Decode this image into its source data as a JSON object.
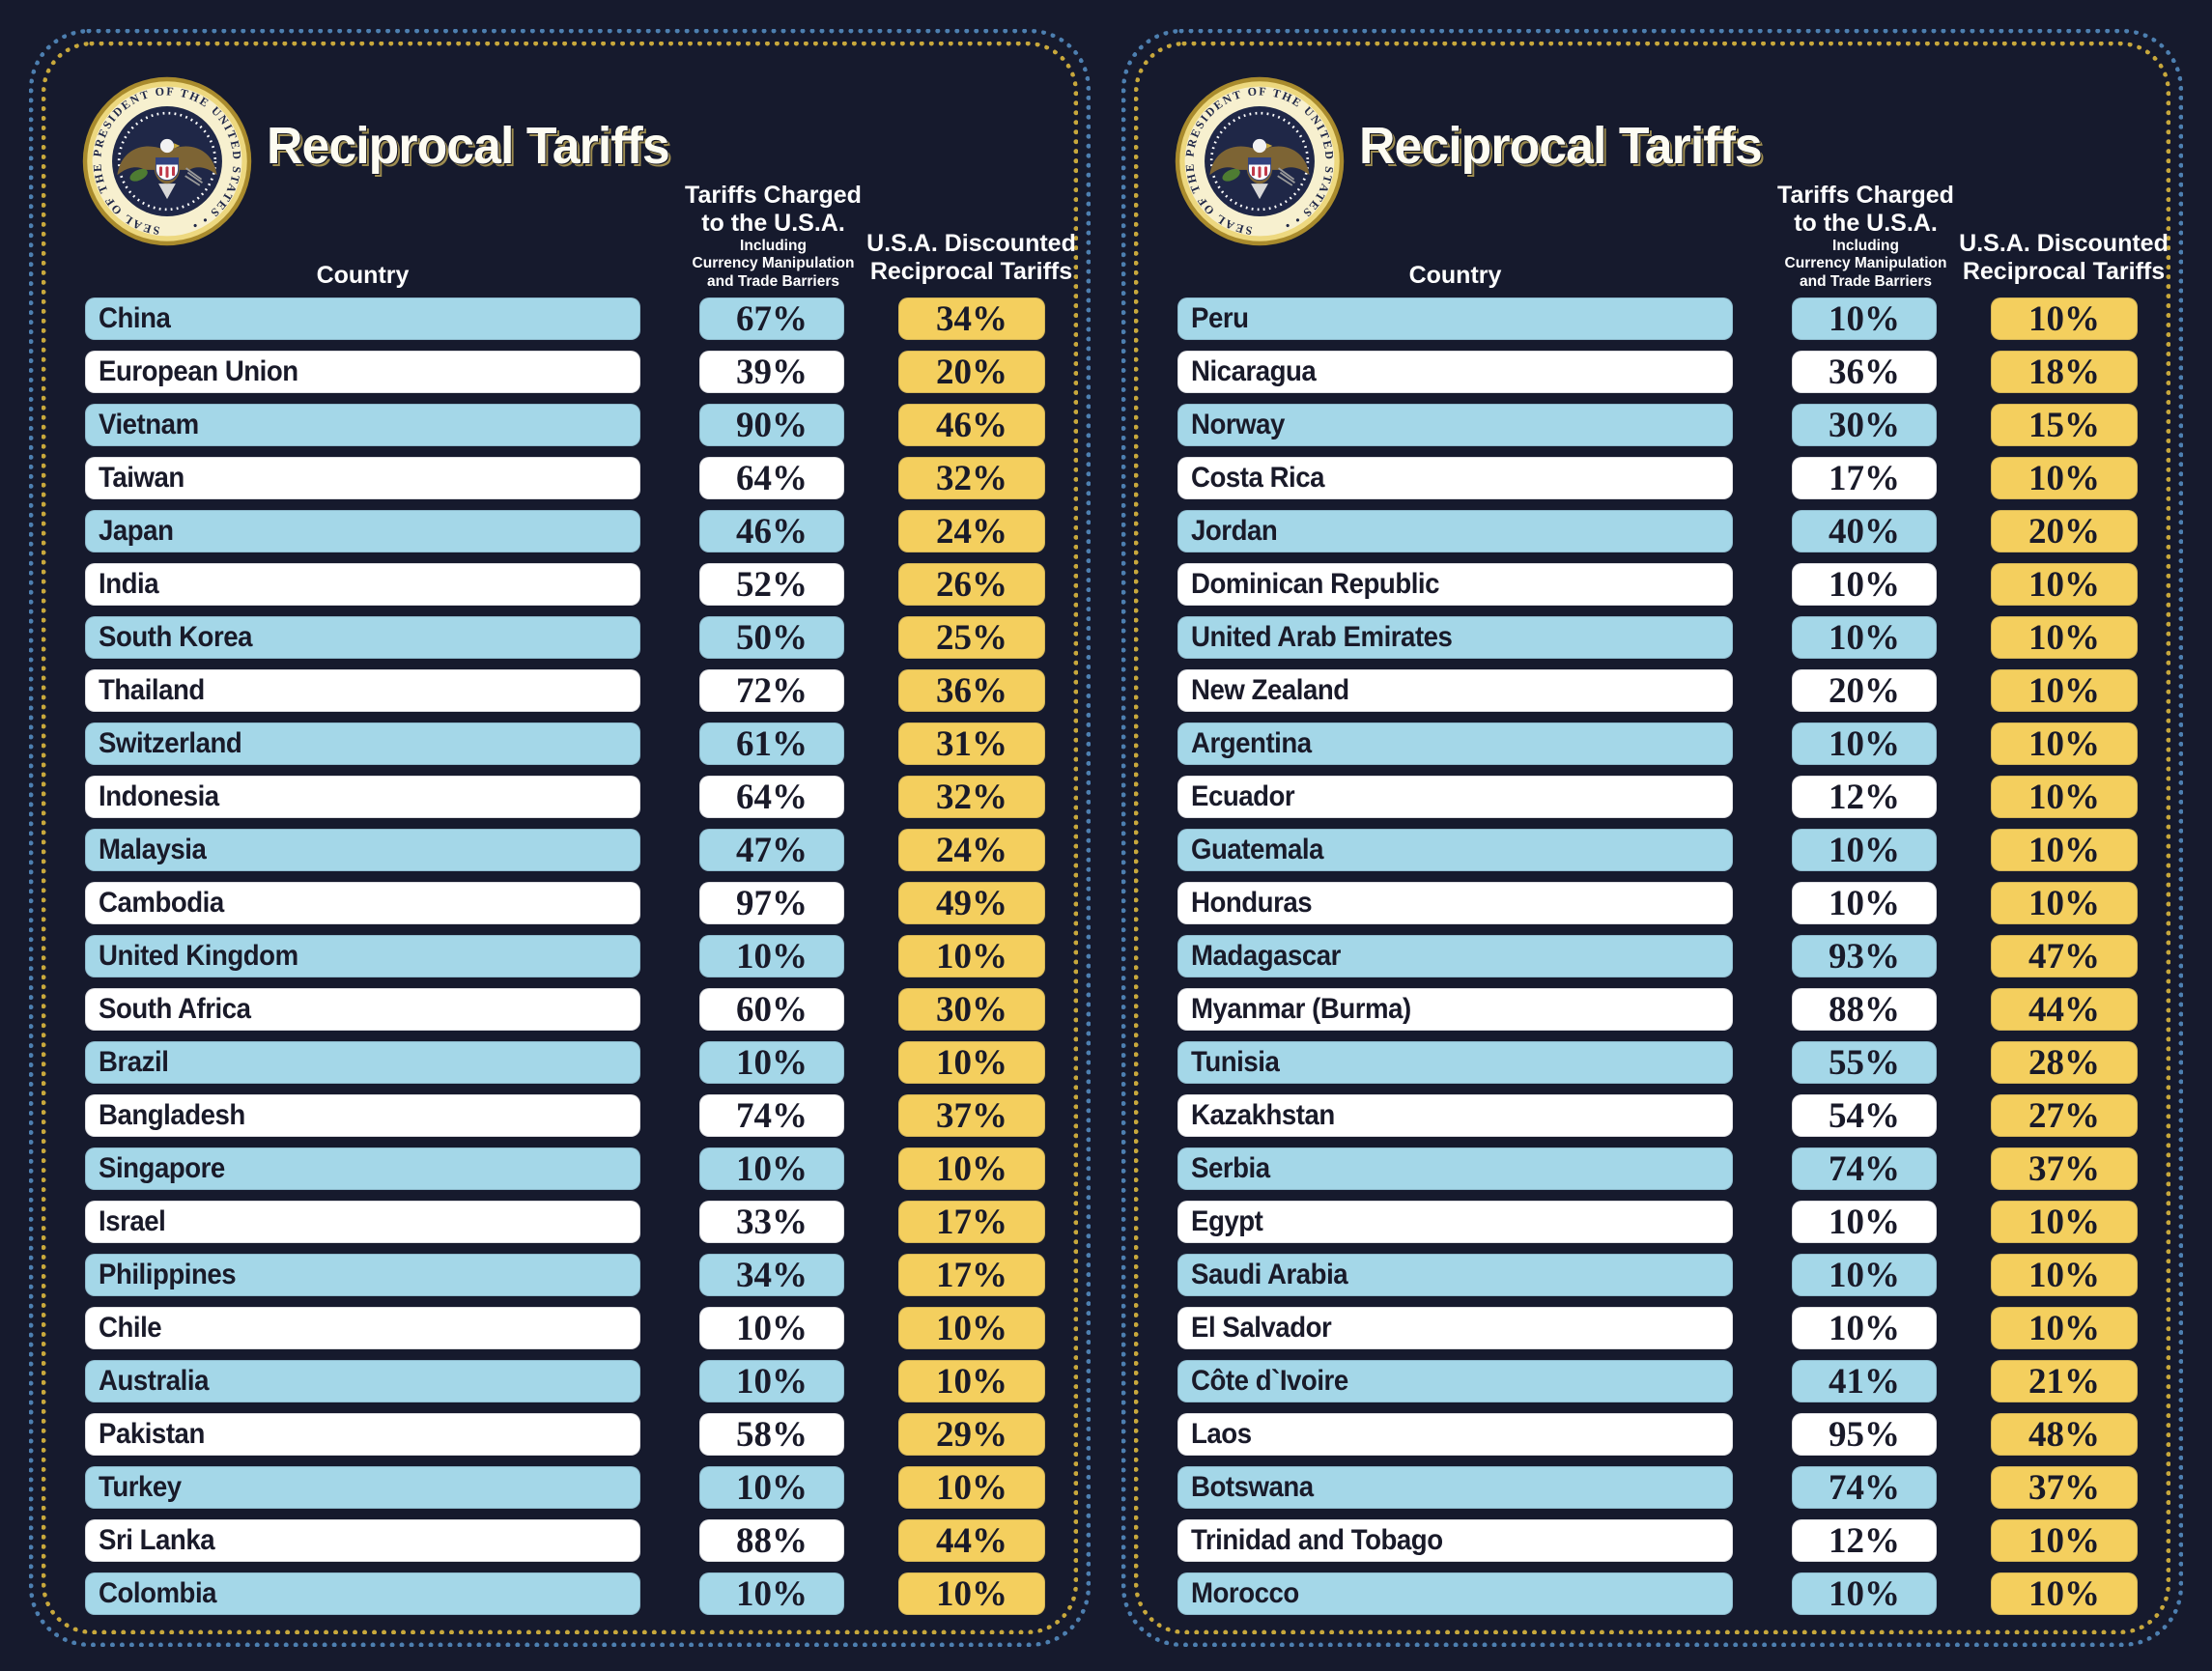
{
  "colors": {
    "background": "#161a2d",
    "row_blue": "#a4d7e8",
    "row_white": "#ffffff",
    "value_gold": "#f4cf5e",
    "dot_border_blue": "#4d7fb0",
    "dot_border_gold": "#c8a83c",
    "text_dark": "#191a29",
    "text_light": "#ffffff"
  },
  "panels": [
    {
      "title": "Reciprocal Tariffs",
      "seal_ring_text": "SEAL OF THE PRESIDENT OF THE UNITED STATES",
      "header": {
        "country": "Country",
        "charged_line1": "Tariffs Charged",
        "charged_line2": "to the U.S.A.",
        "charged_sub1": "Including",
        "charged_sub2": "Currency Manipulation",
        "charged_sub3": "and Trade Barriers",
        "discounted_line1": "U.S.A. Discounted",
        "discounted_line2": "Reciprocal Tariffs"
      }
    },
    {
      "title": "Reciprocal Tariffs",
      "seal_ring_text": "SEAL OF THE PRESIDENT OF THE UNITED STATES",
      "header": {
        "country": "Country",
        "charged_line1": "Tariffs Charged",
        "charged_line2": "to the U.S.A.",
        "charged_sub1": "Including",
        "charged_sub2": "Currency Manipulation",
        "charged_sub3": "and Trade Barriers",
        "discounted_line1": "U.S.A. Discounted",
        "discounted_line2": "Reciprocal Tariffs"
      }
    }
  ],
  "chart_data": [
    {
      "type": "table",
      "title": "Reciprocal Tariffs",
      "columns": [
        "Country",
        "Tariffs Charged to the U.S.A. Including Currency Manipulation and Trade Barriers",
        "U.S.A. Discounted Reciprocal Tariffs"
      ],
      "rows": [
        [
          "China",
          "67%",
          "34%"
        ],
        [
          "European Union",
          "39%",
          "20%"
        ],
        [
          "Vietnam",
          "90%",
          "46%"
        ],
        [
          "Taiwan",
          "64%",
          "32%"
        ],
        [
          "Japan",
          "46%",
          "24%"
        ],
        [
          "India",
          "52%",
          "26%"
        ],
        [
          "South Korea",
          "50%",
          "25%"
        ],
        [
          "Thailand",
          "72%",
          "36%"
        ],
        [
          "Switzerland",
          "61%",
          "31%"
        ],
        [
          "Indonesia",
          "64%",
          "32%"
        ],
        [
          "Malaysia",
          "47%",
          "24%"
        ],
        [
          "Cambodia",
          "97%",
          "49%"
        ],
        [
          "United Kingdom",
          "10%",
          "10%"
        ],
        [
          "South Africa",
          "60%",
          "30%"
        ],
        [
          "Brazil",
          "10%",
          "10%"
        ],
        [
          "Bangladesh",
          "74%",
          "37%"
        ],
        [
          "Singapore",
          "10%",
          "10%"
        ],
        [
          "Israel",
          "33%",
          "17%"
        ],
        [
          "Philippines",
          "34%",
          "17%"
        ],
        [
          "Chile",
          "10%",
          "10%"
        ],
        [
          "Australia",
          "10%",
          "10%"
        ],
        [
          "Pakistan",
          "58%",
          "29%"
        ],
        [
          "Turkey",
          "10%",
          "10%"
        ],
        [
          "Sri Lanka",
          "88%",
          "44%"
        ],
        [
          "Colombia",
          "10%",
          "10%"
        ]
      ]
    },
    {
      "type": "table",
      "title": "Reciprocal Tariffs",
      "columns": [
        "Country",
        "Tariffs Charged to the U.S.A. Including Currency Manipulation and Trade Barriers",
        "U.S.A. Discounted Reciprocal Tariffs"
      ],
      "rows": [
        [
          "Peru",
          "10%",
          "10%"
        ],
        [
          "Nicaragua",
          "36%",
          "18%"
        ],
        [
          "Norway",
          "30%",
          "15%"
        ],
        [
          "Costa Rica",
          "17%",
          "10%"
        ],
        [
          "Jordan",
          "40%",
          "20%"
        ],
        [
          "Dominican Republic",
          "10%",
          "10%"
        ],
        [
          "United Arab Emirates",
          "10%",
          "10%"
        ],
        [
          "New Zealand",
          "20%",
          "10%"
        ],
        [
          "Argentina",
          "10%",
          "10%"
        ],
        [
          "Ecuador",
          "12%",
          "10%"
        ],
        [
          "Guatemala",
          "10%",
          "10%"
        ],
        [
          "Honduras",
          "10%",
          "10%"
        ],
        [
          "Madagascar",
          "93%",
          "47%"
        ],
        [
          "Myanmar (Burma)",
          "88%",
          "44%"
        ],
        [
          "Tunisia",
          "55%",
          "28%"
        ],
        [
          "Kazakhstan",
          "54%",
          "27%"
        ],
        [
          "Serbia",
          "74%",
          "37%"
        ],
        [
          "Egypt",
          "10%",
          "10%"
        ],
        [
          "Saudi Arabia",
          "10%",
          "10%"
        ],
        [
          "El Salvador",
          "10%",
          "10%"
        ],
        [
          "Côte d`Ivoire",
          "41%",
          "21%"
        ],
        [
          "Laos",
          "95%",
          "48%"
        ],
        [
          "Botswana",
          "74%",
          "37%"
        ],
        [
          "Trinidad and Tobago",
          "12%",
          "10%"
        ],
        [
          "Morocco",
          "10%",
          "10%"
        ]
      ]
    }
  ]
}
